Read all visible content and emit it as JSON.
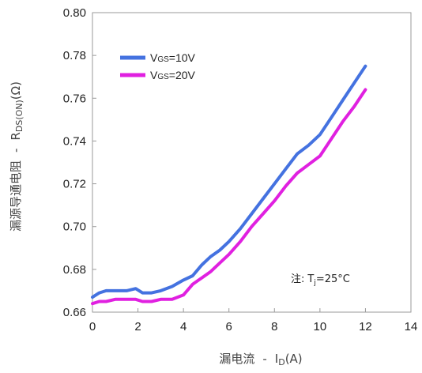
{
  "chart_data": {
    "type": "line",
    "title": "",
    "xlabel_main": "漏电流",
    "xlabel_sym": "I",
    "xlabel_sub": "D",
    "xlabel_unit": "(A)",
    "ylabel_main": "漏源导通电阻",
    "ylabel_sym": "R",
    "ylabel_sub": "DS(ON)",
    "ylabel_unit": "(Ω)",
    "dash": "-",
    "xlim": [
      0,
      14
    ],
    "ylim": [
      0.66,
      0.8
    ],
    "x_ticks": [
      "0",
      "2",
      "4",
      "6",
      "8",
      "10",
      "12",
      "14"
    ],
    "y_ticks": [
      "0.66",
      "0.68",
      "0.70",
      "0.72",
      "0.74",
      "0.76",
      "0.78",
      "0.80"
    ],
    "grid": false,
    "legend_position": "top-left",
    "annotation": {
      "prefix": "注:",
      "sym": "T",
      "sub": "j",
      "value": "=25°C"
    },
    "series": [
      {
        "name_main": "V",
        "name_sub": "GS",
        "name_value": "=10V",
        "color": "#4472e0",
        "x": [
          0,
          0.3,
          0.6,
          1.0,
          1.5,
          1.9,
          2.2,
          2.6,
          3.0,
          3.5,
          4.0,
          4.4,
          4.8,
          5.2,
          5.6,
          6.0,
          6.5,
          7.0,
          7.5,
          8.0,
          8.5,
          9.0,
          9.5,
          10.0,
          10.5,
          11.0,
          11.5,
          12.0
        ],
        "y": [
          0.667,
          0.669,
          0.67,
          0.67,
          0.67,
          0.671,
          0.669,
          0.669,
          0.67,
          0.672,
          0.675,
          0.677,
          0.682,
          0.686,
          0.689,
          0.693,
          0.699,
          0.706,
          0.713,
          0.72,
          0.727,
          0.734,
          0.738,
          0.743,
          0.751,
          0.759,
          0.767,
          0.775
        ]
      },
      {
        "name_main": "V",
        "name_sub": "GS",
        "name_value": "=20V",
        "color": "#e020e0",
        "x": [
          0,
          0.3,
          0.6,
          1.0,
          1.5,
          1.9,
          2.2,
          2.6,
          3.0,
          3.5,
          4.0,
          4.4,
          4.8,
          5.2,
          5.6,
          6.0,
          6.5,
          7.0,
          7.5,
          8.0,
          8.5,
          9.0,
          9.5,
          10.0,
          10.5,
          11.0,
          11.5,
          12.0
        ],
        "y": [
          0.664,
          0.665,
          0.665,
          0.666,
          0.666,
          0.666,
          0.665,
          0.665,
          0.666,
          0.666,
          0.668,
          0.673,
          0.676,
          0.679,
          0.683,
          0.687,
          0.693,
          0.7,
          0.706,
          0.712,
          0.719,
          0.725,
          0.729,
          0.733,
          0.741,
          0.749,
          0.756,
          0.764
        ]
      }
    ]
  }
}
